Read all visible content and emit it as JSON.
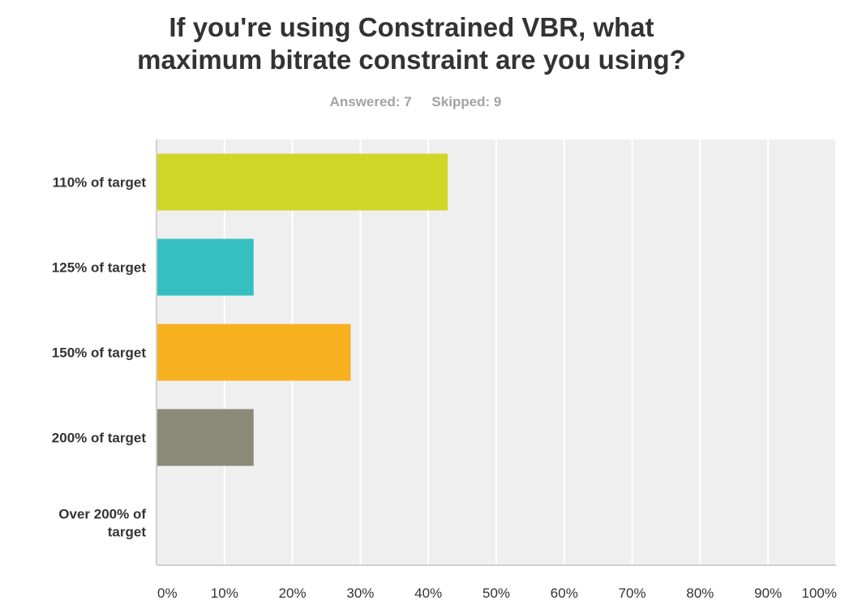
{
  "title_lines": [
    "If you're using Constrained VBR, what",
    "maximum bitrate constraint are you using?"
  ],
  "summary": {
    "answered": "Answered: 7",
    "skipped": "Skipped: 9"
  },
  "chart_data": {
    "type": "bar",
    "orientation": "horizontal",
    "title": "If you're using Constrained VBR, what maximum bitrate constraint are you using?",
    "categories": [
      "110% of target",
      "125% of target",
      "150% of target",
      "200% of target",
      "Over 200% of target"
    ],
    "category_label_lines": [
      [
        "110% of target"
      ],
      [
        "125% of target"
      ],
      [
        "150% of target"
      ],
      [
        "200% of target"
      ],
      [
        "Over 200% of",
        "target"
      ]
    ],
    "values": [
      42.86,
      14.29,
      28.57,
      14.29,
      0
    ],
    "colors": [
      "#cfd628",
      "#35bfc1",
      "#f7b01e",
      "#8a8a79",
      "#777777"
    ],
    "xlim": [
      0,
      100
    ],
    "xticks": [
      0,
      10,
      20,
      30,
      40,
      50,
      60,
      70,
      80,
      90,
      100
    ],
    "xtick_labels": [
      "0%",
      "10%",
      "20%",
      "30%",
      "40%",
      "50%",
      "60%",
      "70%",
      "80%",
      "90%",
      "100%"
    ],
    "grid": true,
    "xlabel": "",
    "ylabel": ""
  }
}
